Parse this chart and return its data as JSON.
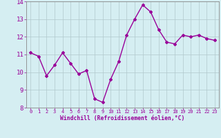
{
  "x": [
    0,
    1,
    2,
    3,
    4,
    5,
    6,
    7,
    8,
    9,
    10,
    11,
    12,
    13,
    14,
    15,
    16,
    17,
    18,
    19,
    20,
    21,
    22,
    23
  ],
  "y": [
    11.1,
    10.9,
    9.8,
    10.4,
    11.1,
    10.5,
    9.9,
    10.1,
    8.5,
    8.3,
    9.6,
    10.6,
    12.1,
    13.0,
    13.8,
    13.4,
    12.4,
    11.7,
    11.6,
    12.1,
    12.0,
    12.1,
    11.9,
    11.8
  ],
  "line_color": "#990099",
  "marker": "D",
  "markersize": 2,
  "linewidth": 1.0,
  "bg_color": "#d5eef2",
  "grid_color": "#b0c8cc",
  "xlabel": "Windchill (Refroidissement éolien,°C)",
  "xlabel_color": "#990099",
  "tick_color": "#990099",
  "ylim": [
    8,
    14
  ],
  "xlim_min": -0.5,
  "xlim_max": 23.5,
  "yticks": [
    8,
    9,
    10,
    11,
    12,
    13,
    14
  ],
  "xticks": [
    0,
    1,
    2,
    3,
    4,
    5,
    6,
    7,
    8,
    9,
    10,
    11,
    12,
    13,
    14,
    15,
    16,
    17,
    18,
    19,
    20,
    21,
    22,
    23
  ],
  "spine_color": "#888888",
  "tick_fontsize": 5.0,
  "ytick_fontsize": 6.5,
  "xlabel_fontsize": 5.8
}
